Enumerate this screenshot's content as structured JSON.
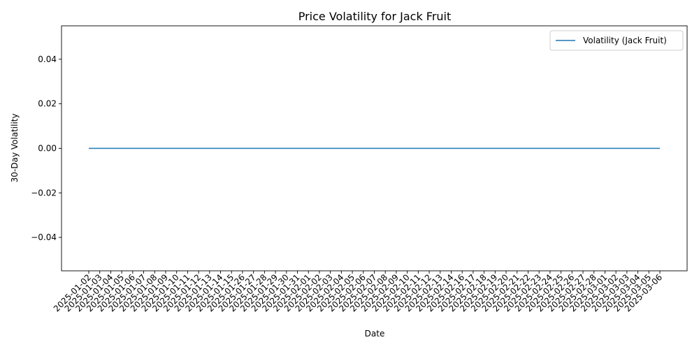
{
  "chart_data": {
    "type": "line",
    "title": "Price Volatility for Jack Fruit",
    "xlabel": "Date",
    "ylabel": "30-Day Volatility",
    "x": [
      "2025-01-02",
      "2025-01-03",
      "2025-01-04",
      "2025-01-05",
      "2025-01-06",
      "2025-01-07",
      "2025-01-08",
      "2025-01-09",
      "2025-01-10",
      "2025-01-11",
      "2025-01-12",
      "2025-01-13",
      "2025-01-14",
      "2025-01-15",
      "2025-01-26",
      "2025-01-27",
      "2025-01-28",
      "2025-01-29",
      "2025-01-30",
      "2025-01-31",
      "2025-02-01",
      "2025-02-02",
      "2025-02-03",
      "2025-02-04",
      "2025-02-05",
      "2025-02-06",
      "2025-02-07",
      "2025-02-08",
      "2025-02-09",
      "2025-02-10",
      "2025-02-11",
      "2025-02-12",
      "2025-02-13",
      "2025-02-14",
      "2025-02-16",
      "2025-02-17",
      "2025-02-18",
      "2025-02-19",
      "2025-02-20",
      "2025-02-21",
      "2025-02-22",
      "2025-02-23",
      "2025-02-24",
      "2025-02-25",
      "2025-02-26",
      "2025-02-27",
      "2025-02-28",
      "2025-03-01",
      "2025-03-02",
      "2025-03-03",
      "2025-03-04",
      "2025-03-05",
      "2025-03-06"
    ],
    "series": [
      {
        "name": "Volatility (Jack Fruit)",
        "color": "#1f77b4",
        "values": [
          0,
          0,
          0,
          0,
          0,
          0,
          0,
          0,
          0,
          0,
          0,
          0,
          0,
          0,
          0,
          0,
          0,
          0,
          0,
          0,
          0,
          0,
          0,
          0,
          0,
          0,
          0,
          0,
          0,
          0,
          0,
          0,
          0,
          0,
          0,
          0,
          0,
          0,
          0,
          0,
          0,
          0,
          0,
          0,
          0,
          0,
          0,
          0,
          0,
          0,
          0,
          0,
          0
        ]
      }
    ],
    "ylim": [
      -0.055,
      0.055
    ],
    "yticks": [
      -0.04,
      -0.02,
      0.0,
      0.02,
      0.04
    ],
    "ytick_labels": [
      "−0.04",
      "−0.02",
      "0.00",
      "0.02",
      "0.04"
    ],
    "grid": false,
    "legend_position": "top-right"
  }
}
